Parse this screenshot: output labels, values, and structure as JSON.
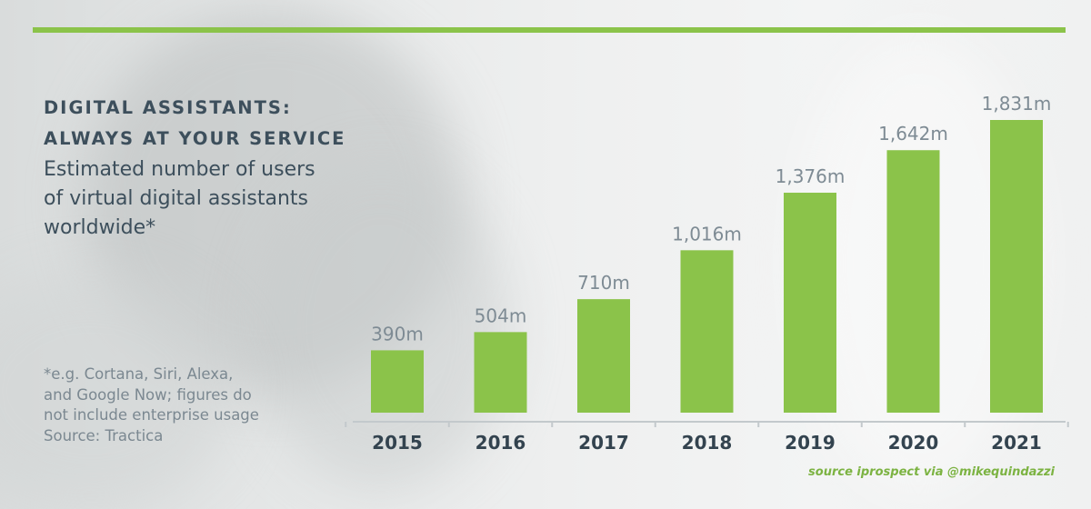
{
  "header": {
    "title_line1": "DIGITAL ASSISTANTS:",
    "title_line2": "ALWAYS AT YOUR SERVICE",
    "subtitle_line1": "Estimated number of users",
    "subtitle_line2": "of virtual digital assistants",
    "subtitle_line3": "worldwide*"
  },
  "footnote": {
    "line1": "*e.g. Cortana, Siri, Alexa,",
    "line2": "and Google Now; figures do",
    "line3": "not include enterprise usage",
    "line4": "Source: Tractica"
  },
  "credit": "source iprospect via @mikequindazzi",
  "colors": {
    "bar": "#8bc34a",
    "accent_rule": "#8bc34a",
    "title_text": "#3d4f5c",
    "value_label": "#7e8b94",
    "axis_label": "#33434f"
  },
  "chart_data": {
    "type": "bar",
    "title": "DIGITAL ASSISTANTS: ALWAYS AT YOUR SERVICE",
    "subtitle": "Estimated number of users of virtual digital assistants worldwide*",
    "xlabel": "",
    "ylabel": "",
    "categories": [
      "2015",
      "2016",
      "2017",
      "2018",
      "2019",
      "2020",
      "2021"
    ],
    "values": [
      390,
      504,
      710,
      1016,
      1376,
      1642,
      1831
    ],
    "value_labels": [
      "390m",
      "504m",
      "710m",
      "1,016m",
      "1,376m",
      "1,642m",
      "1,831m"
    ],
    "unit": "m",
    "ylim": [
      0,
      1831
    ],
    "grid": false,
    "legend": "none"
  }
}
